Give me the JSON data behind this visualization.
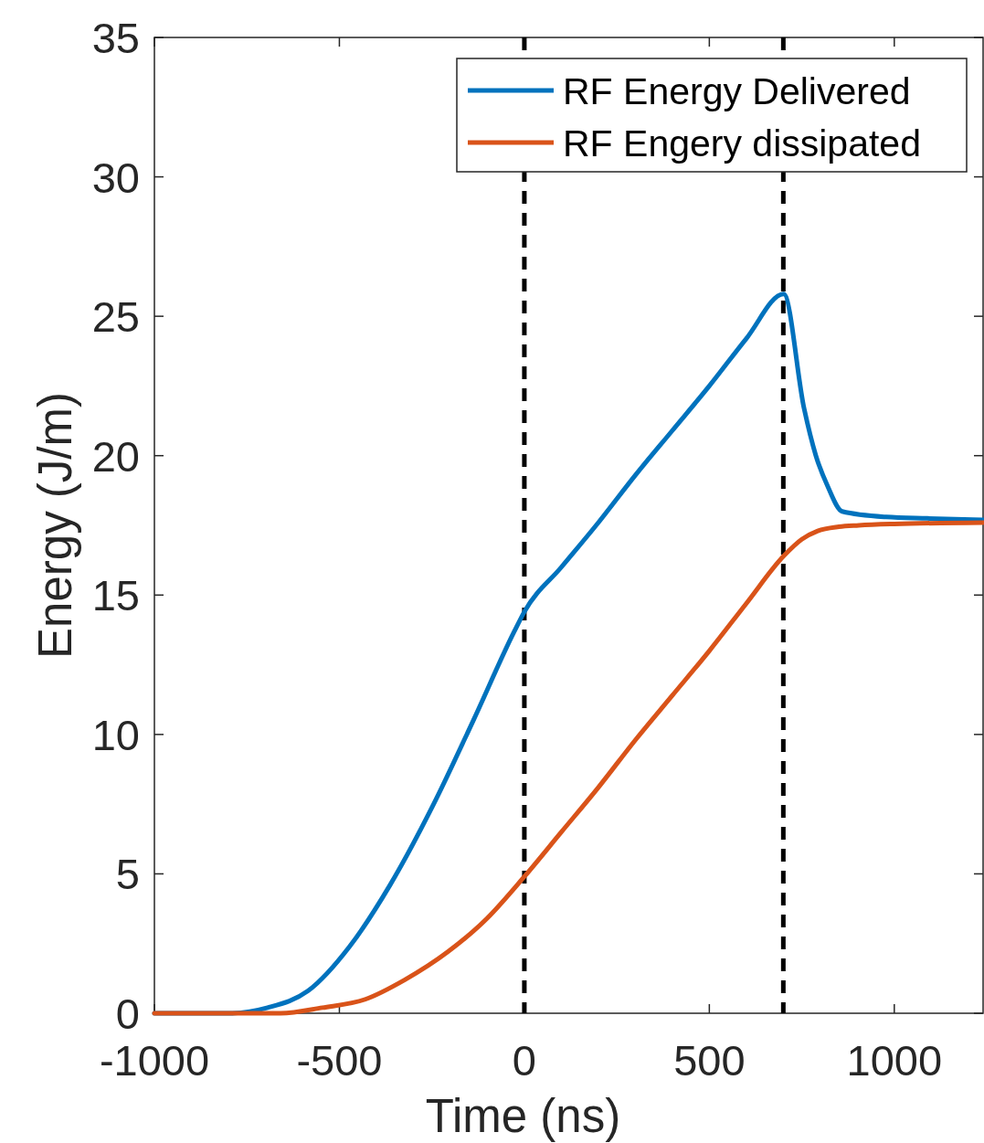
{
  "chart_data": {
    "type": "line",
    "xlabel": "Time (ns)",
    "ylabel": "Energy (J/m)",
    "xlim": [
      -1000,
      1240
    ],
    "xticks": [
      -1000,
      -500,
      0,
      500,
      1000
    ],
    "ylim": [
      0,
      35
    ],
    "yticks": [
      0,
      5,
      10,
      15,
      20,
      25,
      30,
      35
    ],
    "grid": false,
    "legend": "top right",
    "line_style": "solid",
    "marker": "none",
    "ref_lines": [
      {
        "axis": "x",
        "value": 0,
        "color": "#000000",
        "line_style": "dashed"
      },
      {
        "axis": "x",
        "value": 700,
        "color": "#000000",
        "line_style": "dashed"
      }
    ],
    "series": [
      {
        "name": "RF Energy Delivered",
        "color": "#0072bd",
        "x": [
          -1000,
          -800,
          -694,
          -585,
          -472,
          -363,
          -249,
          -138,
          -27,
          0,
          100,
          200,
          300,
          400,
          500,
          600,
          701,
          756,
          788,
          820,
          859,
          978,
          1089,
          1240
        ],
        "values": [
          0,
          0,
          0.2,
          0.8,
          2.4,
          4.6,
          7.4,
          10.5,
          13.7,
          14.4,
          16.0,
          17.6,
          19.3,
          20.9,
          22.5,
          24.2,
          25.8,
          21.7,
          20.0,
          18.9,
          18.0,
          17.8,
          17.75,
          17.7
        ]
      },
      {
        "name": "RF Engery dissipated",
        "color": "#d95319",
        "x": [
          -1000,
          -750,
          -659,
          -546,
          -430,
          -323,
          -207,
          -101,
          0,
          100,
          200,
          300,
          400,
          500,
          600,
          701,
          750,
          793,
          850,
          904,
          1000,
          1240
        ],
        "values": [
          0,
          0,
          0,
          0.2,
          0.5,
          1.2,
          2.2,
          3.4,
          4.9,
          6.5,
          8.1,
          9.8,
          11.4,
          13.0,
          14.7,
          16.4,
          17.0,
          17.3,
          17.45,
          17.5,
          17.55,
          17.6
        ]
      }
    ]
  }
}
